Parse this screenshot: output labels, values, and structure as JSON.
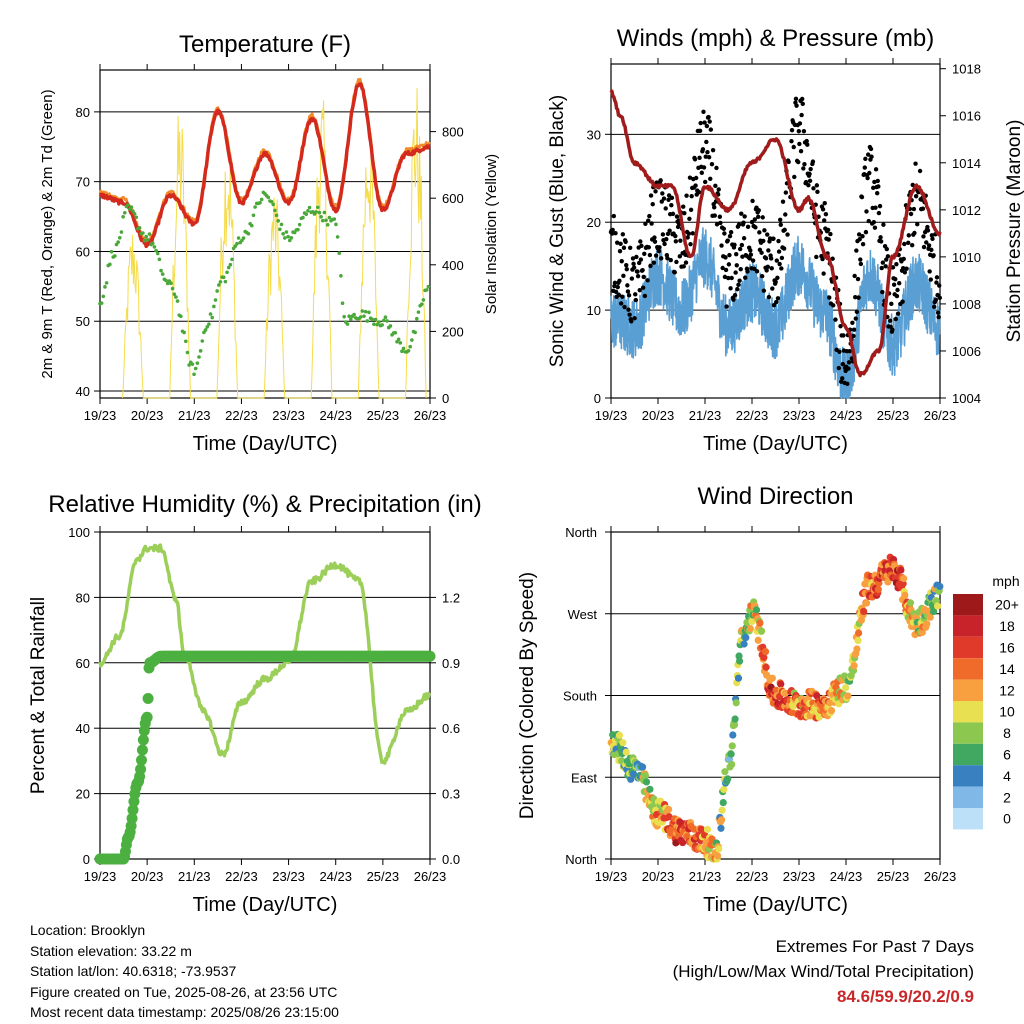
{
  "chart_data": [
    {
      "type": "line",
      "title": "Temperature (F)",
      "xlabel": "Time (Day/UTC)",
      "ylabel": "2m & 9m T (Red, Orange) & 2m Td (Green)",
      "y2label": "Solar Insolation (Yellow)",
      "x_ticks": [
        "19/23",
        "20/23",
        "21/23",
        "22/23",
        "23/23",
        "24/23",
        "25/23",
        "26/23"
      ],
      "ylim": [
        39,
        86
      ],
      "y_ticks": [
        40,
        50,
        60,
        70,
        80
      ],
      "y2lim": [
        0,
        985
      ],
      "y2_ticks": [
        0,
        200,
        400,
        600,
        800
      ],
      "grid": true,
      "series": [
        {
          "name": "2m T",
          "color": "#d42a1e",
          "x": [
            0,
            0.5,
            1,
            1.5,
            2,
            2.5,
            3,
            3.5,
            4,
            4.5,
            5,
            5.5,
            6,
            6.5,
            7
          ],
          "values": [
            68,
            67,
            61,
            68,
            64,
            80,
            67,
            74,
            67,
            79,
            66,
            84,
            66,
            74,
            75
          ]
        },
        {
          "name": "9m T",
          "color": "#f08a2a",
          "x": [
            0,
            0.5,
            1,
            1.5,
            2,
            2.5,
            3,
            3.5,
            4,
            4.5,
            5,
            5.5,
            6,
            6.5,
            7
          ],
          "values": [
            68.5,
            67.5,
            61.5,
            68.5,
            64.5,
            80.5,
            67.5,
            74.5,
            67.5,
            79.5,
            66.5,
            84.5,
            66.5,
            74.5,
            75.5
          ]
        },
        {
          "name": "2m Td",
          "color": "#4aa83a",
          "x": [
            0,
            0.3,
            0.6,
            1,
            1.5,
            2,
            2.3,
            2.6,
            3,
            3.5,
            4,
            4.5,
            5,
            5.2,
            5.5,
            6,
            6.5,
            7
          ],
          "values": [
            53,
            60,
            66,
            62,
            55,
            43,
            50,
            56,
            62,
            68,
            62,
            66,
            64,
            50,
            51,
            50,
            46,
            55
          ]
        },
        {
          "name": "Solar Insolation",
          "color": "#f5dc4a",
          "axis": "y2",
          "x": [
            0,
            1,
            2,
            3,
            4,
            5,
            6,
            7
          ],
          "values": [
            100,
            540,
            900,
            840,
            660,
            940,
            890,
            980
          ]
        }
      ]
    },
    {
      "type": "scatter",
      "title": "Winds (mph) & Pressure (mb)",
      "xlabel": "Time (Day/UTC)",
      "ylabel": "Sonic Wind & Gust (Blue, Black)",
      "y2label": "Station Pressure (Maroon)",
      "x_ticks": [
        "19/23",
        "20/23",
        "21/23",
        "22/23",
        "23/23",
        "24/23",
        "25/23",
        "26/23"
      ],
      "ylim": [
        0,
        38
      ],
      "y_ticks": [
        0,
        10,
        20,
        30
      ],
      "y2lim": [
        1004,
        1018.2
      ],
      "y2_ticks": [
        1004,
        1006,
        1008,
        1010,
        1012,
        1014,
        1016,
        1018
      ],
      "grid": true,
      "series": [
        {
          "name": "Sonic Wind",
          "color": "#5a9fd4",
          "x": [
            0,
            0.5,
            1,
            1.5,
            2,
            2.5,
            3,
            3.5,
            4,
            4.5,
            5,
            5.5,
            6,
            6.5,
            7
          ],
          "values": [
            9,
            8,
            14,
            10,
            16,
            8,
            12,
            8,
            15,
            10,
            2,
            14,
            6,
            13,
            8
          ]
        },
        {
          "name": "Gust",
          "color": "#000000",
          "x": [
            0,
            0.5,
            1,
            1.5,
            2,
            2.5,
            3,
            3.5,
            4,
            4.5,
            5,
            5.5,
            6,
            6.5,
            7
          ],
          "values": [
            16,
            12,
            20,
            17,
            28,
            14,
            18,
            14,
            30,
            18,
            4,
            24,
            10,
            22,
            13
          ]
        },
        {
          "name": "Station Pressure",
          "color": "#a01c1c",
          "axis": "y2",
          "x": [
            0,
            0.2,
            0.5,
            1,
            1.3,
            1.7,
            2,
            2.5,
            3,
            3.5,
            4,
            4.2,
            4.6,
            5,
            5.3,
            5.7,
            6,
            6.5,
            7
          ],
          "values": [
            1017,
            1016,
            1014,
            1013,
            1013,
            1010,
            1013,
            1012,
            1014,
            1015,
            1012,
            1012.5,
            1010,
            1007,
            1005,
            1006,
            1010,
            1013,
            1011
          ]
        }
      ]
    },
    {
      "type": "line",
      "title": "Relative Humidity (%) & Precipitation (in)",
      "xlabel": "Time (Day/UTC)",
      "ylabel": "Percent & Total Rainfall",
      "x_ticks": [
        "19/23",
        "20/23",
        "21/23",
        "22/23",
        "23/23",
        "24/23",
        "25/23",
        "26/23"
      ],
      "ylim": [
        0,
        100
      ],
      "y_ticks": [
        0,
        20,
        40,
        60,
        80,
        100
      ],
      "y2lim": [
        0,
        1.5
      ],
      "y2_ticks": [
        "0.0",
        "0.3",
        "0.6",
        "0.9",
        "1.2"
      ],
      "grid": true,
      "series": [
        {
          "name": "Relative Humidity",
          "color": "#9ccf5a",
          "x": [
            0,
            0.4,
            0.8,
            1,
            1.3,
            1.6,
            1.8,
            2.2,
            2.6,
            3,
            3.5,
            4,
            4.5,
            5,
            5.5,
            6,
            6.5,
            7
          ],
          "values": [
            60,
            68,
            92,
            95,
            95,
            80,
            62,
            45,
            32,
            48,
            55,
            60,
            85,
            90,
            85,
            30,
            45,
            50
          ]
        },
        {
          "name": "Total Rainfall",
          "color": "#4cb040",
          "axis": "y2",
          "x": [
            0,
            0.5,
            0.6,
            0.8,
            1,
            1.05,
            1.3,
            2,
            7
          ],
          "values": [
            0,
            0,
            0.1,
            0.35,
            0.65,
            0.9,
            0.93,
            0.93,
            0.93
          ]
        }
      ]
    },
    {
      "type": "scatter",
      "title": "Wind Direction",
      "xlabel": "Time (Day/UTC)",
      "ylabel": "Direction (Colored By Speed)",
      "x_ticks": [
        "19/23",
        "20/23",
        "21/23",
        "22/23",
        "23/23",
        "24/23",
        "25/23",
        "26/23"
      ],
      "ylim": [
        0,
        360
      ],
      "y_ticks": [
        "North",
        "East",
        "South",
        "West",
        "North"
      ],
      "grid": true,
      "legend": {
        "title": "mph",
        "placement": "right",
        "labels": [
          "20+",
          "18",
          "16",
          "14",
          "12",
          "10",
          "8",
          "6",
          "4",
          "2",
          "0"
        ],
        "colors": [
          "#9e1a1a",
          "#c8232a",
          "#e03a2a",
          "#f06a2a",
          "#f8a040",
          "#e8e050",
          "#8cc850",
          "#40a860",
          "#3880c0",
          "#80b8e8",
          "#bce0f8"
        ]
      },
      "series": [
        {
          "name": "Wind Direction",
          "x": [
            0,
            0.5,
            1,
            1.5,
            2,
            2.2,
            2.5,
            2.8,
            3,
            3.5,
            4,
            4.5,
            5,
            5.5,
            6,
            6.5,
            7
          ],
          "values": [
            130,
            100,
            50,
            30,
            20,
            5,
            100,
            240,
            270,
            180,
            170,
            170,
            190,
            300,
            320,
            260,
            290
          ],
          "speeds": [
            8,
            6,
            12,
            16,
            14,
            10,
            6,
            8,
            10,
            16,
            12,
            14,
            10,
            14,
            16,
            10,
            8
          ]
        }
      ]
    }
  ],
  "footer": {
    "location": "Location: Brooklyn",
    "elevation": "Station elevation: 33.22 m",
    "latlon": "Station lat/lon: 40.6318; -73.9537",
    "created": "Figure created on Tue, 2025-08-26, at 23:56 UTC",
    "recent": "Most recent data timestamp: 2025/08/26 23:15:00"
  },
  "extremes": {
    "title": "Extremes For Past 7 Days",
    "subtitle": "(High/Low/Max Wind/Total Precipitation)",
    "values": "84.6/59.9/20.2/0.9"
  }
}
